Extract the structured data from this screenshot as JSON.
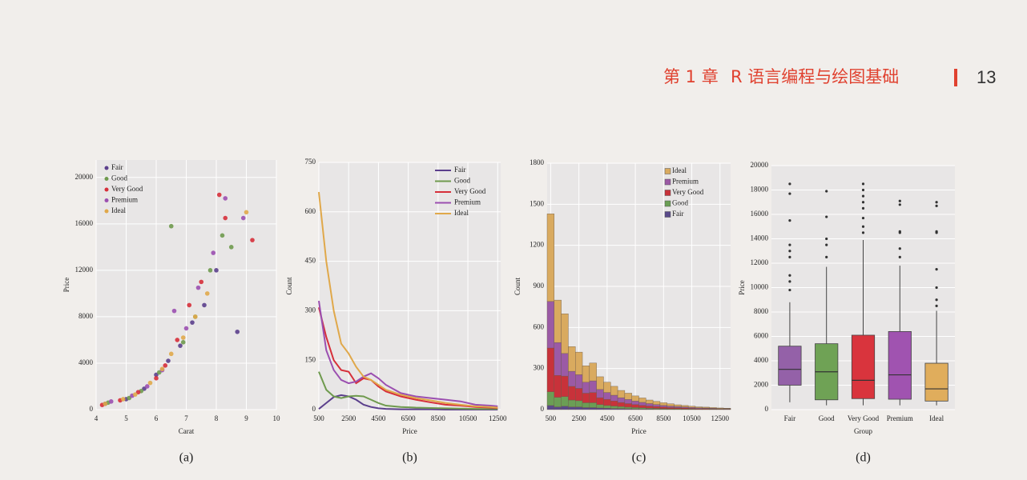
{
  "header": {
    "chapter": "第 1 章",
    "title": "R 语言编程与绘图基础",
    "page": "13"
  },
  "chart_data": [
    {
      "type": "scatter",
      "caption": "(a)",
      "xlabel": "Carat",
      "ylabel": "Price",
      "legend": "top-left",
      "grid": true,
      "xlim": [
        4,
        10
      ],
      "xticks": [
        4,
        5,
        6,
        7,
        8,
        9,
        10
      ],
      "ylim": [
        0,
        21500
      ],
      "yticks": [
        0,
        4000,
        8000,
        12000,
        16000,
        20000
      ],
      "series": [
        {
          "name": "Fair",
          "color": "#5b3f8c",
          "x": [
            4.3,
            5.0,
            5.6,
            6.0,
            6.4,
            6.8,
            7.2,
            7.6,
            8.0,
            8.7
          ],
          "values": [
            500,
            900,
            1800,
            3000,
            4200,
            5500,
            7500,
            9000,
            12000,
            6700
          ]
        },
        {
          "name": "Good",
          "color": "#6f9a4e",
          "x": [
            4.4,
            5.1,
            5.5,
            6.1,
            6.5,
            6.9,
            7.3,
            7.8,
            8.2,
            8.5
          ],
          "values": [
            600,
            1000,
            1600,
            3200,
            15800,
            5800,
            8000,
            12000,
            15000,
            14000
          ]
        },
        {
          "name": "Very Good",
          "color": "#d62f3a",
          "x": [
            4.2,
            4.8,
            5.4,
            6.0,
            6.3,
            6.7,
            7.1,
            7.5,
            8.1,
            8.3,
            9.2
          ],
          "values": [
            400,
            800,
            1500,
            2700,
            3800,
            6000,
            9000,
            11000,
            18500,
            16500,
            14600
          ]
        },
        {
          "name": "Premium",
          "color": "#9b4fb0",
          "x": [
            4.5,
            5.2,
            5.7,
            6.2,
            6.6,
            7.0,
            7.4,
            7.9,
            8.3,
            8.9
          ],
          "values": [
            700,
            1200,
            2000,
            3400,
            8500,
            7000,
            10500,
            13500,
            18200,
            16500
          ]
        },
        {
          "name": "Ideal",
          "color": "#e0a84a",
          "x": [
            4.3,
            4.9,
            5.3,
            5.8,
            6.2,
            6.5,
            6.9,
            7.3,
            7.7,
            9.0
          ],
          "values": [
            500,
            900,
            1300,
            2300,
            3500,
            4800,
            6200,
            8000,
            10000,
            17000
          ]
        }
      ]
    },
    {
      "type": "line",
      "caption": "(b)",
      "xlabel": "Price",
      "ylabel": "Count",
      "legend": "top-right",
      "grid": true,
      "xlim": [
        500,
        12700
      ],
      "xticks": [
        500,
        2500,
        4500,
        6500,
        8500,
        10500,
        12500
      ],
      "ylim": [
        0,
        750
      ],
      "yticks": [
        0,
        150,
        300,
        450,
        600,
        750
      ],
      "x": [
        500,
        1000,
        1500,
        2000,
        2500,
        3000,
        3500,
        4000,
        4500,
        5000,
        6000,
        7000,
        8000,
        9000,
        10000,
        11000,
        12000,
        12500
      ],
      "series": [
        {
          "name": "Fair",
          "color": "#5b3f8c",
          "values": [
            2,
            20,
            38,
            44,
            40,
            30,
            15,
            8,
            4,
            2,
            1,
            1,
            1,
            0,
            0,
            0,
            0,
            0
          ]
        },
        {
          "name": "Good",
          "color": "#6f9a4e",
          "values": [
            115,
            60,
            40,
            35,
            40,
            42,
            40,
            30,
            20,
            12,
            8,
            6,
            5,
            4,
            3,
            2,
            2,
            2
          ]
        },
        {
          "name": "Very Good",
          "color": "#d62f3a",
          "values": [
            310,
            220,
            150,
            120,
            115,
            80,
            95,
            90,
            70,
            55,
            40,
            30,
            22,
            15,
            12,
            8,
            6,
            5
          ]
        },
        {
          "name": "Premium",
          "color": "#9b4fb0",
          "values": [
            330,
            180,
            120,
            90,
            80,
            85,
            100,
            110,
            95,
            75,
            50,
            40,
            35,
            30,
            25,
            15,
            12,
            10
          ]
        },
        {
          "name": "Ideal",
          "color": "#e0a84a",
          "values": [
            660,
            450,
            300,
            200,
            170,
            130,
            100,
            90,
            75,
            60,
            45,
            35,
            28,
            20,
            15,
            10,
            8,
            6
          ]
        }
      ]
    },
    {
      "type": "histogram",
      "caption": "(c)",
      "xlabel": "Price",
      "ylabel": "Count",
      "legend": "top-right",
      "grid": true,
      "xlim": [
        250,
        13250
      ],
      "xticks": [
        500,
        2500,
        4500,
        6500,
        8500,
        10500,
        12500
      ],
      "ylim": [
        0,
        1800
      ],
      "yticks": [
        0,
        300,
        600,
        900,
        1200,
        1500,
        1800
      ],
      "bins": [
        250,
        750,
        1250,
        1750,
        2250,
        2750,
        3250,
        3750,
        4250,
        4750,
        5250,
        5750,
        6250,
        6750,
        7250,
        7750,
        8250,
        8750,
        9250,
        9750,
        10250,
        10750,
        11250,
        11750,
        12250,
        12750,
        13250
      ],
      "series": [
        {
          "name": "Fair",
          "color": "#5a4a8a",
          "values": [
            30,
            20,
            25,
            20,
            20,
            15,
            15,
            12,
            10,
            8,
            7,
            6,
            5,
            4,
            4,
            3,
            3,
            2,
            2,
            2,
            1,
            1,
            1,
            1,
            1,
            1
          ]
        },
        {
          "name": "Good",
          "color": "#6b9e55",
          "values": [
            100,
            70,
            70,
            50,
            45,
            35,
            35,
            25,
            20,
            18,
            15,
            12,
            10,
            9,
            7,
            6,
            5,
            4,
            4,
            3,
            3,
            2,
            2,
            2,
            1,
            1
          ]
        },
        {
          "name": "Very Good",
          "color": "#c8323a",
          "values": [
            320,
            160,
            150,
            100,
            90,
            70,
            75,
            50,
            45,
            37,
            30,
            26,
            22,
            18,
            15,
            13,
            11,
            9,
            8,
            7,
            5,
            4,
            4,
            3,
            3,
            2
          ]
        },
        {
          "name": "Premium",
          "color": "#9b5aa5",
          "values": [
            340,
            240,
            165,
            110,
            100,
            80,
            85,
            60,
            50,
            42,
            35,
            30,
            25,
            22,
            18,
            15,
            12,
            11,
            9,
            8,
            7,
            6,
            5,
            4,
            3,
            3
          ]
        },
        {
          "name": "Ideal",
          "color": "#d9aa5f",
          "values": [
            640,
            310,
            290,
            180,
            165,
            120,
            130,
            93,
            75,
            65,
            53,
            46,
            38,
            32,
            26,
            23,
            19,
            16,
            12,
            10,
            9,
            7,
            6,
            5,
            4,
            3
          ]
        }
      ]
    },
    {
      "type": "box",
      "caption": "(d)",
      "xlabel": "Group",
      "ylabel": "Price",
      "grid": true,
      "ylim": [
        0,
        20000
      ],
      "yticks": [
        0,
        2000,
        4000,
        6000,
        8000,
        10000,
        12000,
        14000,
        16000,
        18000,
        20000
      ],
      "categories": [
        "Fair",
        "Good",
        "Very Good",
        "Premium",
        "Ideal"
      ],
      "colors": [
        "#9461a8",
        "#6fa255",
        "#d9343d",
        "#a053b0",
        "#e0ad5c"
      ],
      "boxes": [
        {
          "whislo": 600,
          "q1": 2000,
          "med": 3300,
          "q3": 5200,
          "whishi": 8800,
          "fliers": [
            9800,
            10500,
            11000,
            12500,
            13000,
            13500,
            15500,
            17700,
            18500
          ]
        },
        {
          "whislo": 350,
          "q1": 800,
          "med": 3100,
          "q3": 5400,
          "whishi": 11700,
          "fliers": [
            12500,
            13500,
            14000,
            15800,
            17900
          ]
        },
        {
          "whislo": 350,
          "q1": 900,
          "med": 2400,
          "q3": 6100,
          "whishi": 13900,
          "fliers": [
            14500,
            15000,
            15700,
            16500,
            17000,
            17500,
            18000,
            18500
          ]
        },
        {
          "whislo": 350,
          "q1": 850,
          "med": 2850,
          "q3": 6400,
          "whishi": 11800,
          "fliers": [
            12500,
            13200,
            14500,
            14600,
            16800,
            17100
          ]
        },
        {
          "whislo": 350,
          "q1": 700,
          "med": 1700,
          "q3": 3800,
          "whishi": 8100,
          "fliers": [
            8500,
            9000,
            10000,
            11500,
            14500,
            14600,
            16700,
            17000
          ]
        }
      ]
    }
  ]
}
